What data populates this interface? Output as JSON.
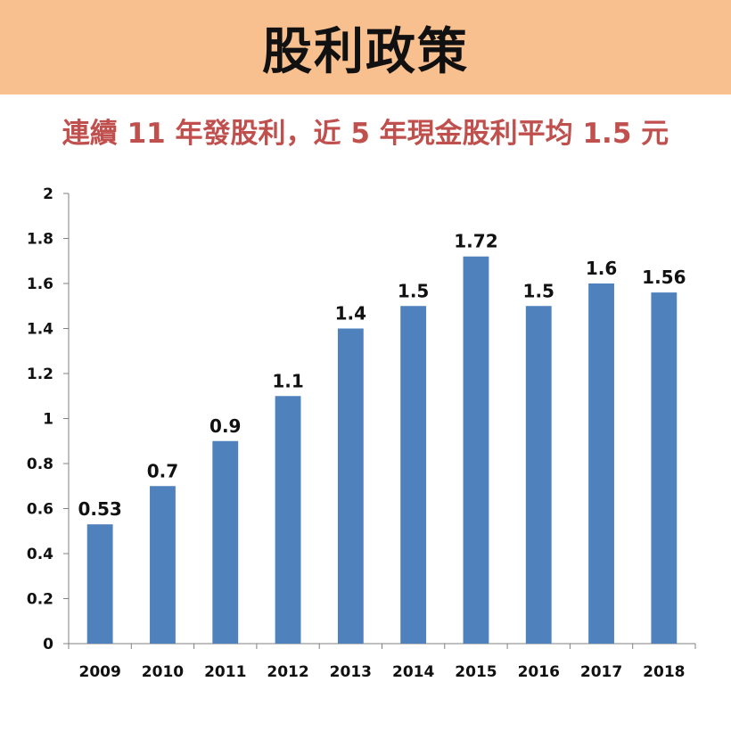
{
  "header": {
    "title": "股利政策",
    "background_color": "#F9C08F"
  },
  "subtitle": "連續 11 年發股利，近 5 年現金股利平均 1.5 元",
  "subtitle_color": "#C0504D",
  "chart_data": {
    "type": "bar",
    "title": "",
    "xlabel": "",
    "ylabel": "",
    "categories": [
      "2009",
      "2010",
      "2011",
      "2012",
      "2013",
      "2014",
      "2015",
      "2016",
      "2017",
      "2018"
    ],
    "values": [
      0.53,
      0.7,
      0.9,
      1.1,
      1.4,
      1.5,
      1.72,
      1.5,
      1.6,
      1.56
    ],
    "data_labels": [
      "0.53",
      "0.7",
      "0.9",
      "1.1",
      "1.4",
      "1.5",
      "1.72",
      "1.5",
      "1.6",
      "1.56"
    ],
    "ylim": [
      0,
      2
    ],
    "yticks": [
      0,
      0.2,
      0.4,
      0.6,
      0.8,
      1,
      1.2,
      1.4,
      1.6,
      1.8,
      2
    ],
    "ytick_labels": [
      "0",
      "0.2",
      "0.4",
      "0.6",
      "0.8",
      "1",
      "1.2",
      "1.4",
      "1.6",
      "1.8",
      "2"
    ],
    "bar_color": "#4F81BD",
    "grid": false,
    "legend": "none"
  }
}
